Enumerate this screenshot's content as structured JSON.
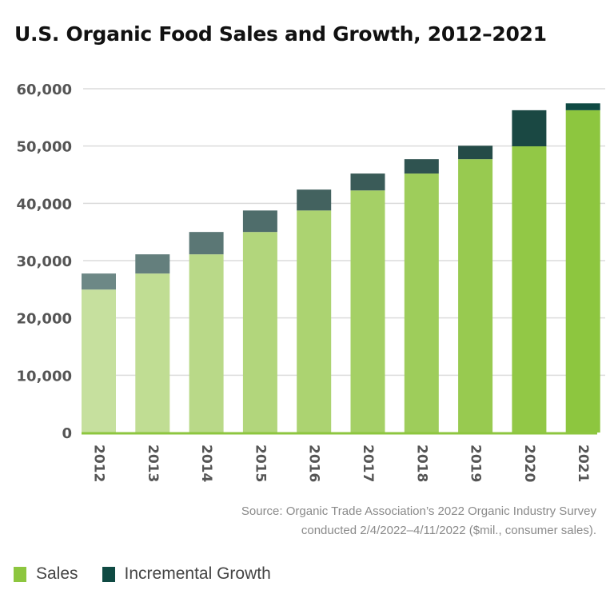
{
  "chart_data": {
    "type": "bar",
    "stacked": true,
    "title": "U.S. Organic Food Sales and Growth, 2012–2021",
    "xlabel": "",
    "ylabel": "",
    "ylim": [
      0,
      60000
    ],
    "yticks": [
      0,
      10000,
      20000,
      30000,
      40000,
      50000,
      60000
    ],
    "ytick_labels": [
      "0",
      "10,000",
      "20,000",
      "30,000",
      "40,000",
      "50,000",
      "60,000"
    ],
    "grid": true,
    "categories": [
      "2012",
      "2013",
      "2014",
      "2015",
      "2016",
      "2017",
      "2018",
      "2019",
      "2020",
      "2021"
    ],
    "series": [
      {
        "name": "Sales",
        "values": [
          24950,
          27750,
          31100,
          35000,
          38750,
          42250,
          45200,
          47700,
          49950,
          56250
        ],
        "color": "#8dc63f"
      },
      {
        "name": "Incremental Growth",
        "values": [
          2800,
          3350,
          3900,
          3750,
          3650,
          2950,
          2500,
          2350,
          6300,
          1200
        ],
        "color": "#0f4a43"
      }
    ],
    "sales_bar_colors": [
      "#c6e09e",
      "#c0dd93",
      "#b9d988",
      "#b2d67c",
      "#acd371",
      "#a5d066",
      "#9ecd5b",
      "#98ca50",
      "#92c846",
      "#8dc63f"
    ],
    "growth_bar_colors": [
      "#6d8886",
      "#647f7d",
      "#5b7775",
      "#4f6d6b",
      "#43625f",
      "#3a5b58",
      "#2f5350",
      "#244b47",
      "#1a4843",
      "#0f4a43"
    ],
    "legend_position": "bottom-left",
    "source": [
      "Source: Organic Trade Association’s 2022 Organic Industry Survey",
      "conducted 2/4/2022–4/11/2022 ($mil., consumer sales)."
    ]
  }
}
